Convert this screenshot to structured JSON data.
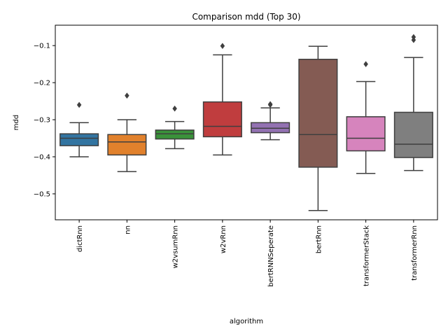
{
  "chart_data": {
    "type": "box",
    "title": "Comparison mdd (Top 30)",
    "xlabel": "algorithm",
    "ylabel": "mdd",
    "ylim": [
      -0.57,
      -0.045
    ],
    "yticks": [
      -0.1,
      -0.2,
      -0.3,
      -0.4,
      -0.5
    ],
    "ytick_labels": [
      "−0.1",
      "−0.2",
      "−0.3",
      "−0.4",
      "−0.5"
    ],
    "grid": false,
    "legend": "none",
    "series": [
      {
        "category": "dictRnn",
        "color": "#3274a1",
        "whisker_low": -0.4,
        "q1": -0.37,
        "median": -0.35,
        "q3": -0.338,
        "whisker_high": -0.308,
        "outliers": [
          -0.26
        ]
      },
      {
        "category": "nn",
        "color": "#e1812c",
        "whisker_low": -0.44,
        "q1": -0.395,
        "median": -0.36,
        "q3": -0.34,
        "whisker_high": -0.3,
        "outliers": [
          -0.235
        ]
      },
      {
        "category": "w2vsumRnn",
        "color": "#3a923a",
        "whisker_low": -0.378,
        "q1": -0.352,
        "median": -0.338,
        "q3": -0.328,
        "whisker_high": -0.305,
        "outliers": [
          -0.27
        ]
      },
      {
        "category": "w2vRnn",
        "color": "#c03d3e",
        "whisker_low": -0.395,
        "q1": -0.346,
        "median": -0.318,
        "q3": -0.252,
        "whisker_high": -0.125,
        "outliers": [
          -0.101
        ]
      },
      {
        "category": "bertRNNSeperate",
        "color": "#9372b2",
        "whisker_low": -0.354,
        "q1": -0.335,
        "median": -0.323,
        "q3": -0.308,
        "whisker_high": -0.268,
        "outliers": [
          -0.258,
          -0.26
        ]
      },
      {
        "category": "bertRnn",
        "color": "#845b53",
        "whisker_low": -0.545,
        "q1": -0.428,
        "median": -0.34,
        "q3": -0.137,
        "whisker_high": -0.102,
        "outliers": []
      },
      {
        "category": "transformerStack",
        "color": "#d684bd",
        "whisker_low": -0.445,
        "q1": -0.384,
        "median": -0.35,
        "q3": -0.292,
        "whisker_high": -0.197,
        "outliers": [
          -0.15
        ]
      },
      {
        "category": "transformerRnn",
        "color": "#7f7f7f",
        "whisker_low": -0.437,
        "q1": -0.402,
        "median": -0.366,
        "q3": -0.28,
        "whisker_high": -0.132,
        "outliers": [
          -0.077,
          -0.085
        ]
      }
    ]
  }
}
